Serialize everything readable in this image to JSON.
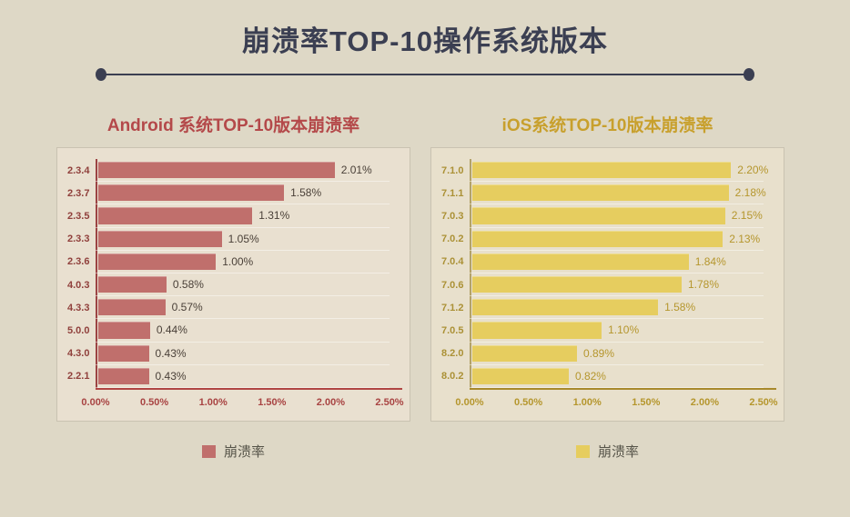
{
  "page": {
    "background": "#ded8c6"
  },
  "header": {
    "title": "崩溃率TOP-10操作系统版本",
    "accent_color": "#3b3f52"
  },
  "chart_data": [
    {
      "type": "bar",
      "orientation": "horizontal",
      "title": "Android 系统TOP-10版本崩溃率",
      "series_name": "崩溃率",
      "categories": [
        "2.3.4",
        "2.3.7",
        "2.3.5",
        "2.3.3",
        "2.3.6",
        "4.0.3",
        "4.3.3",
        "5.0.0",
        "4.3.0",
        "2.2.1"
      ],
      "values": [
        2.01,
        1.58,
        1.31,
        1.05,
        1.0,
        0.58,
        0.57,
        0.44,
        0.43,
        0.43
      ],
      "value_labels": [
        "2.01%",
        "1.58%",
        "1.31%",
        "1.05%",
        "1.00%",
        "0.58%",
        "0.57%",
        "0.44%",
        "0.43%",
        "0.43%"
      ],
      "x_ticks": [
        "0.00%",
        "0.50%",
        "1.00%",
        "1.50%",
        "2.00%",
        "2.50%"
      ],
      "xlim": [
        0,
        2.5
      ],
      "legend_label": "崩溃率",
      "grid": "faint horizontal row separators",
      "legend_position": "bottom",
      "colors": {
        "title": "#b4494a",
        "bar": "#c06f6c",
        "category": "#90403c",
        "value": "#4a4038",
        "tick": "#a84342",
        "vaxis": "#9c4444",
        "baseline": "#b04543",
        "panel_bg": "#e9e0d0"
      }
    },
    {
      "type": "bar",
      "orientation": "horizontal",
      "title": "iOS系统TOP-10版本崩溃率",
      "series_name": "崩溃率",
      "categories": [
        "7.1.0",
        "7.1.1",
        "7.0.3",
        "7.0.2",
        "7.0.4",
        "7.0.6",
        "7.1.2",
        "7.0.5",
        "8.2.0",
        "8.0.2"
      ],
      "values": [
        2.2,
        2.18,
        2.15,
        2.13,
        1.84,
        1.78,
        1.58,
        1.1,
        0.89,
        0.82
      ],
      "value_labels": [
        "2.20%",
        "2.18%",
        "2.15%",
        "2.13%",
        "1.84%",
        "1.78%",
        "1.58%",
        "1.10%",
        "0.89%",
        "0.82%"
      ],
      "x_ticks": [
        "0.00%",
        "0.50%",
        "1.00%",
        "1.50%",
        "2.00%",
        "2.50%"
      ],
      "xlim": [
        0,
        2.5
      ],
      "legend_label": "崩溃率",
      "grid": "faint horizontal row separators",
      "legend_position": "bottom",
      "colors": {
        "title": "#c8a02d",
        "bar": "#e6cd5f",
        "category": "#ab9136",
        "value": "#b5962d",
        "tick": "#b5962d",
        "vaxis": "#b3a269",
        "baseline": "#a8892c",
        "panel_bg": "#e8e0cc"
      }
    }
  ]
}
